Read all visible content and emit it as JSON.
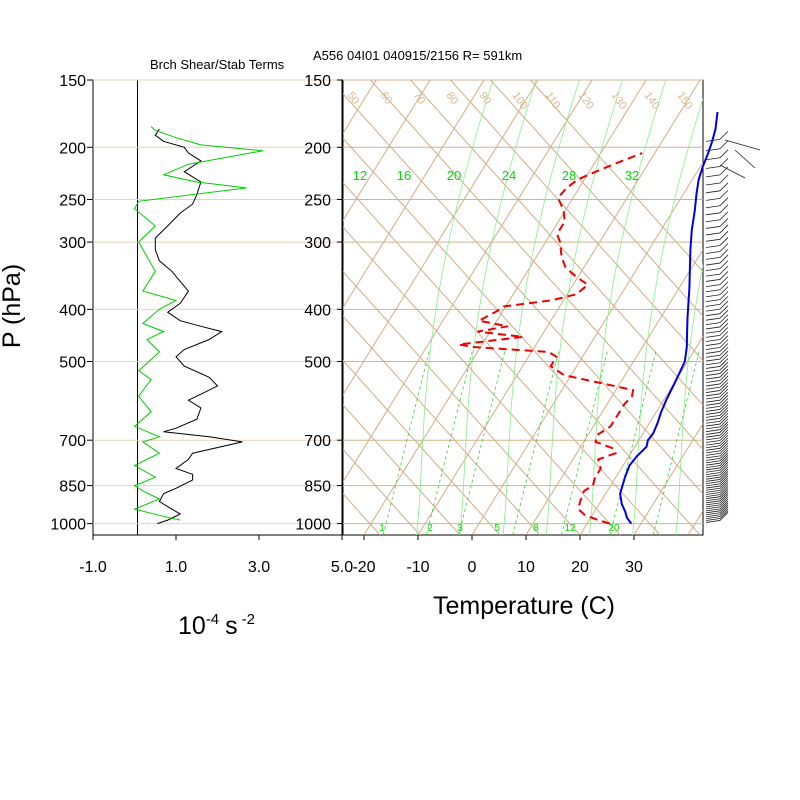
{
  "chart_data": [
    {
      "type": "line",
      "title": "Brch Shear/Stab Terms",
      "ylabel": "P (hPa)",
      "xlabel_base": "10",
      "xlabel_exp": "-4",
      "xlabel_unit": "s",
      "xlabel_unit_exp": "-2",
      "xlim": [
        -1.0,
        5.0
      ],
      "xticks": [
        "-1.0",
        "1.0",
        "3.0",
        "5.0"
      ],
      "pressure_ticks": [
        "150",
        "200",
        "250",
        "300",
        "400",
        "500",
        "700",
        "850",
        "1000"
      ],
      "series": [
        {
          "color": "#000000",
          "points": [
            [
              0.55,
              1000
            ],
            [
              0.8,
              985
            ],
            [
              1.1,
              960
            ],
            [
              0.9,
              940
            ],
            [
              0.6,
              910
            ],
            [
              0.7,
              880
            ],
            [
              1.0,
              860
            ],
            [
              1.4,
              830
            ],
            [
              1.4,
              810
            ],
            [
              1.0,
              790
            ],
            [
              1.3,
              760
            ],
            [
              1.4,
              740
            ],
            [
              2.6,
              705
            ],
            [
              1.8,
              690
            ],
            [
              0.7,
              675
            ],
            [
              1.0,
              665
            ],
            [
              1.5,
              640
            ],
            [
              1.6,
              610
            ],
            [
              1.3,
              590
            ],
            [
              1.6,
              575
            ],
            [
              2.0,
              555
            ],
            [
              1.8,
              535
            ],
            [
              1.2,
              510
            ],
            [
              1.0,
              490
            ],
            [
              1.2,
              475
            ],
            [
              1.8,
              455
            ],
            [
              2.1,
              440
            ],
            [
              1.6,
              430
            ],
            [
              1.1,
              420
            ],
            [
              0.8,
              405
            ],
            [
              1.1,
              390
            ],
            [
              1.3,
              370
            ],
            [
              1.1,
              355
            ],
            [
              0.9,
              340
            ],
            [
              0.6,
              325
            ],
            [
              0.5,
              310
            ],
            [
              0.5,
              295
            ],
            [
              0.8,
              280
            ],
            [
              1.1,
              265
            ],
            [
              1.4,
              255
            ],
            [
              1.5,
              245
            ],
            [
              1.6,
              232
            ],
            [
              1.2,
              222
            ],
            [
              1.6,
              212
            ],
            [
              1.3,
              205
            ],
            [
              1.2,
              200
            ],
            [
              0.7,
              195
            ],
            [
              0.5,
              190
            ],
            [
              0.6,
              185
            ]
          ]
        },
        {
          "color": "#00cc00",
          "points": [
            [
              1.1,
              985
            ],
            [
              0.6,
              965
            ],
            [
              0.0,
              940
            ],
            [
              0.6,
              900
            ],
            [
              0.2,
              870
            ],
            [
              0.0,
              850
            ],
            [
              0.5,
              820
            ],
            [
              0.0,
              780
            ],
            [
              0.6,
              740
            ],
            [
              0.2,
              705
            ],
            [
              0.6,
              690
            ],
            [
              0.0,
              660
            ],
            [
              0.4,
              620
            ],
            [
              0.1,
              580
            ],
            [
              0.4,
              540
            ],
            [
              0.1,
              520
            ],
            [
              0.6,
              480
            ],
            [
              0.3,
              455
            ],
            [
              0.7,
              440
            ],
            [
              0.2,
              425
            ],
            [
              0.6,
              400
            ],
            [
              1.0,
              385
            ],
            [
              0.2,
              370
            ],
            [
              0.5,
              340
            ],
            [
              0.1,
              300
            ],
            [
              0.5,
              280
            ],
            [
              0.0,
              260
            ],
            [
              0.1,
              252
            ],
            [
              2.7,
              238
            ],
            [
              1.5,
              232
            ],
            [
              0.7,
              225
            ],
            [
              1.3,
              215
            ],
            [
              3.1,
              203
            ],
            [
              1.6,
              198
            ],
            [
              1.0,
              192
            ],
            [
              0.5,
              186
            ],
            [
              0.4,
              183
            ]
          ]
        }
      ]
    },
    {
      "type": "line",
      "title": "A556 04I01 040915/2156 R= 591km",
      "xlabel": "Temperature (C)",
      "xlim": [
        -23.5,
        32
      ],
      "xticks": [
        "-20",
        "-10",
        "0",
        "10",
        "20",
        "30"
      ],
      "pressure_ticks": [
        "150",
        "200",
        "250",
        "300",
        "400",
        "500",
        "700",
        "850",
        "1000"
      ],
      "mixing_ratio_labels": [
        "1",
        "2",
        "3",
        "5",
        "8",
        "12",
        "20"
      ],
      "top_green_labels": [
        "12",
        "16",
        "20",
        "24",
        "28",
        "32"
      ],
      "tan_labels": [
        "50",
        "60",
        "70",
        "80",
        "90",
        "100",
        "110",
        "120",
        "130",
        "140",
        "150"
      ],
      "series": [
        {
          "name": "temperature",
          "color": "#0000dd",
          "points": [
            [
              29.5,
              1000
            ],
            [
              28,
              975
            ],
            [
              27,
              950
            ],
            [
              25.5,
              920
            ],
            [
              24,
              880
            ],
            [
              23.5,
              850
            ],
            [
              23,
              820
            ],
            [
              22.5,
              780
            ],
            [
              22.8,
              750
            ],
            [
              23.5,
              720
            ],
            [
              23.0,
              700
            ],
            [
              23.2,
              680
            ],
            [
              22.8,
              650
            ],
            [
              22.2,
              620
            ],
            [
              21.8,
              590
            ],
            [
              21.5,
              560
            ],
            [
              21.2,
              530
            ],
            [
              20.8,
              500
            ],
            [
              19.5,
              470
            ],
            [
              17.8,
              440
            ],
            [
              16.3,
              415
            ],
            [
              14.8,
              390
            ],
            [
              13.2,
              365
            ],
            [
              11.0,
              335
            ],
            [
              9.0,
              310
            ],
            [
              7.0,
              285
            ],
            [
              5.3,
              262
            ],
            [
              3.8,
              245
            ],
            [
              2.5,
              230
            ],
            [
              1.8,
              218
            ],
            [
              1.2,
              205
            ],
            [
              0.6,
              195
            ],
            [
              -0.2,
              185
            ],
            [
              -1.8,
              172
            ]
          ]
        },
        {
          "name": "dewpoint",
          "color": "#ee0000",
          "points": [
            [
              25.5,
              1000
            ],
            [
              23,
              985
            ],
            [
              20,
              965
            ],
            [
              18,
              940
            ],
            [
              17.5,
              910
            ],
            [
              17,
              870
            ],
            [
              18,
              850
            ],
            [
              17.5,
              820
            ],
            [
              17.5,
              790
            ],
            [
              16,
              760
            ],
            [
              18.5,
              740
            ],
            [
              17.5,
              725
            ],
            [
              13.5,
              705
            ],
            [
              13,
              685
            ],
            [
              14.5,
              660
            ],
            [
              14.5,
              630
            ],
            [
              14.5,
              600
            ],
            [
              15,
              580
            ],
            [
              14.5,
              565
            ],
            [
              0,
              530
            ],
            [
              -3.5,
              510
            ],
            [
              -3.5,
              490
            ],
            [
              -5.5,
              480
            ],
            [
              -20,
              470
            ],
            [
              -23,
              465
            ],
            [
              -12,
              450
            ],
            [
              -21,
              440
            ],
            [
              -16,
              430
            ],
            [
              -22,
              420
            ],
            [
              -20,
              405
            ],
            [
              -19,
              395
            ],
            [
              -11,
              385
            ],
            [
              -7,
              375
            ],
            [
              -6,
              360
            ],
            [
              -9,
              348
            ],
            [
              -12,
              335
            ],
            [
              -14,
              320
            ],
            [
              -16,
              300
            ],
            [
              -17.5,
              290
            ],
            [
              -17.5,
              275
            ],
            [
              -19,
              262
            ],
            [
              -21.5,
              248
            ],
            [
              -21,
              238
            ],
            [
              -20,
              230
            ],
            [
              -18.5,
              225
            ],
            [
              -15,
              215
            ],
            [
              -13,
              210
            ],
            [
              -11,
              205
            ]
          ]
        }
      ]
    }
  ]
}
